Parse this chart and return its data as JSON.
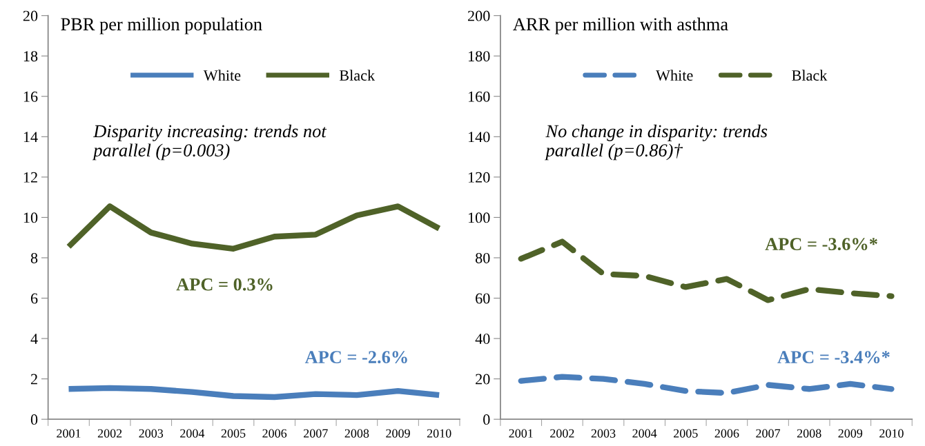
{
  "chart_data": [
    {
      "type": "line",
      "title": "PBR per million population",
      "categories": [
        "2001",
        "2002",
        "2003",
        "2004",
        "2005",
        "2006",
        "2007",
        "2008",
        "2009",
        "2010"
      ],
      "series": [
        {
          "name": "White",
          "color": "#4a7ebb",
          "values": [
            1.5,
            1.55,
            1.5,
            1.35,
            1.15,
            1.1,
            1.25,
            1.2,
            1.4,
            1.2
          ]
        },
        {
          "name": "Black",
          "color": "#4f6228",
          "values": [
            8.55,
            10.55,
            9.25,
            8.7,
            8.45,
            9.05,
            9.15,
            10.1,
            10.55,
            9.45
          ]
        }
      ],
      "ylim": [
        0,
        20
      ],
      "yticks": [
        0,
        2,
        4,
        6,
        8,
        10,
        12,
        14,
        16,
        18,
        20
      ],
      "grid": false,
      "legend": "top",
      "line_style": "solid",
      "marker": "none",
      "annotations": [
        "Disparity increasing: trends not parallel (p=0.003)",
        "APC = 0.3%",
        "APC = -2.6%"
      ]
    },
    {
      "type": "line",
      "title": "ARR per million with asthma",
      "categories": [
        "2001",
        "2002",
        "2003",
        "2004",
        "2005",
        "2006",
        "2007",
        "2008",
        "2009",
        "2010"
      ],
      "series": [
        {
          "name": "White",
          "color": "#4a7ebb",
          "values": [
            19,
            21,
            20,
            17.5,
            14,
            13,
            17,
            15,
            17.5,
            15
          ]
        },
        {
          "name": "Black",
          "color": "#4f6228",
          "values": [
            79.5,
            88,
            72,
            71,
            65.5,
            69.5,
            59,
            64.5,
            62.5,
            61
          ]
        }
      ],
      "ylim": [
        0,
        200
      ],
      "yticks": [
        0,
        20,
        40,
        60,
        80,
        100,
        120,
        140,
        160,
        180,
        200
      ],
      "grid": false,
      "legend": "top",
      "line_style": "dashed",
      "marker": "none",
      "annotations": [
        "No change in disparity: trends parallel (p=0.86)†",
        "APC = -3.6%*",
        "APC = -3.4%*"
      ]
    }
  ]
}
